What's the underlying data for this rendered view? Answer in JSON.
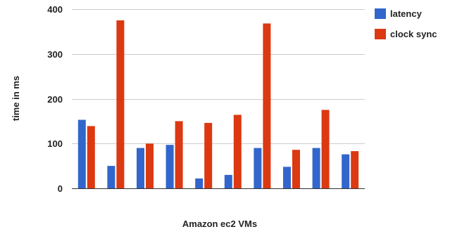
{
  "chart_data": {
    "type": "bar",
    "title": "",
    "xlabel": "Amazon ec2 VMs",
    "ylabel": "time in ms",
    "ylim": [
      0,
      400
    ],
    "yticks": [
      0,
      100,
      200,
      300,
      400
    ],
    "grid": true,
    "legend_position": "top-right",
    "categories": [
      "",
      "",
      "",
      "",
      "",
      "",
      "",
      "",
      "",
      ""
    ],
    "series": [
      {
        "name": "latency",
        "color": "#3366cc",
        "values": [
          153,
          50,
          90,
          97,
          22,
          30,
          90,
          48,
          90,
          76
        ]
      },
      {
        "name": "clock sync",
        "color": "#dc3912",
        "values": [
          139,
          375,
          100,
          150,
          146,
          164,
          368,
          86,
          175,
          83
        ]
      }
    ]
  }
}
